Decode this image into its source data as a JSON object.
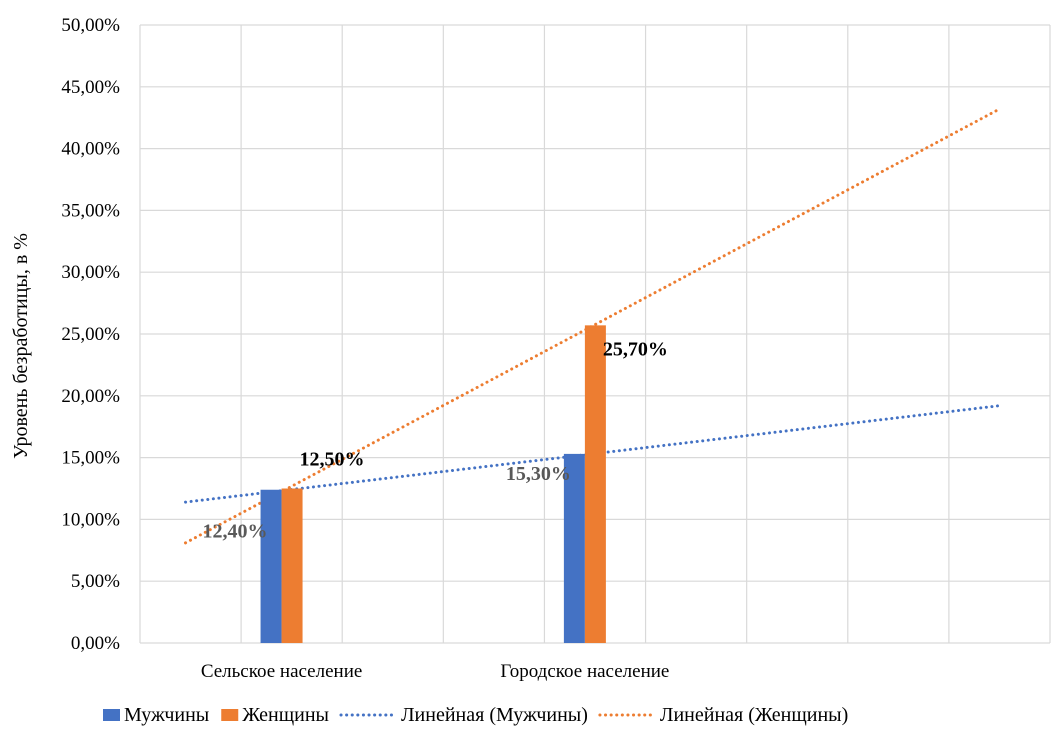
{
  "chart_data": {
    "type": "bar",
    "title": "",
    "xlabel": "",
    "ylabel": "Уровень безработицы, в %",
    "categories": [
      "Сельское население",
      "Городское население"
    ],
    "series": [
      {
        "name": "Мужчины",
        "values": [
          12.4,
          15.3
        ],
        "labels": [
          "12,40%",
          "15,30%"
        ],
        "color": "#4472C4",
        "label_color": "#595959"
      },
      {
        "name": "Женщины",
        "values": [
          12.5,
          25.7
        ],
        "labels": [
          "12,50%",
          "25,70%"
        ],
        "color": "#ED7D31",
        "label_color": "#000000"
      }
    ],
    "trendlines": [
      {
        "name": "Линейная (Мужчины)",
        "of_series": "Мужчины",
        "style": "dotted",
        "color": "#4472C4",
        "start": 11.4,
        "end": 19.2
      },
      {
        "name": "Линейная (Женщины)",
        "of_series": "Женщины",
        "style": "dotted",
        "color": "#ED7D31",
        "start": 8.1,
        "end": 43.2
      }
    ],
    "ylim": [
      0,
      50
    ],
    "yticks": [
      "0,00%",
      "5,00%",
      "10,00%",
      "15,00%",
      "20,00%",
      "25,00%",
      "30,00%",
      "35,00%",
      "40,00%",
      "45,00%",
      "50,00%"
    ],
    "grid": true,
    "legend_position": "bottom"
  }
}
